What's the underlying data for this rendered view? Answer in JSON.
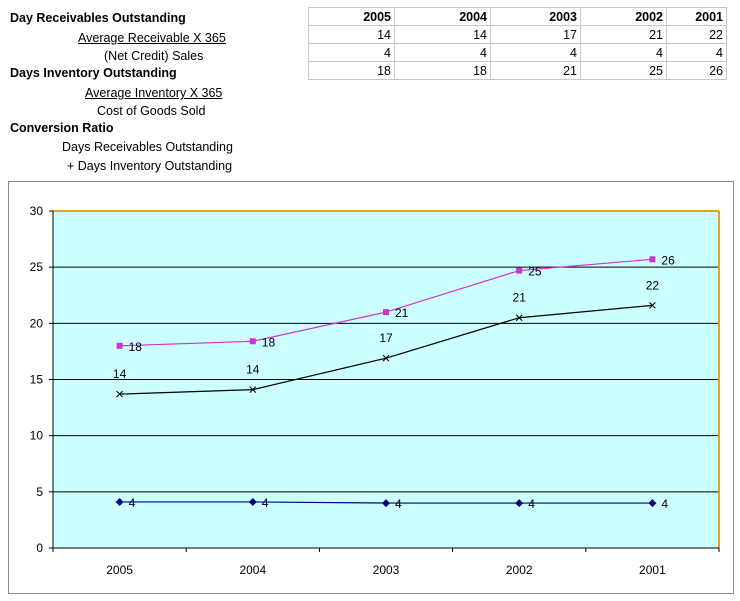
{
  "definitions": {
    "dro_title": "Day Receivables Outstanding",
    "dro_numerator": "Average Receivable X 365",
    "dro_denominator": "(Net Credit) Sales",
    "dio_title": "Days Inventory Outstanding",
    "dio_numerator": "Average Inventory X 365",
    "dio_denominator": "Cost of Goods Sold",
    "cr_title": "Conversion Ratio",
    "cr_line1": "Days Receivables Outstanding",
    "cr_line2": "+ Days Inventory Outstanding"
  },
  "table": {
    "headers": [
      "2005",
      "2004",
      "2003",
      "2002",
      "2001"
    ],
    "rows": [
      [
        "14",
        "14",
        "17",
        "21",
        "22"
      ],
      [
        "4",
        "4",
        "4",
        "4",
        "4"
      ],
      [
        "18",
        "18",
        "21",
        "25",
        "26"
      ]
    ]
  },
  "chart_data": {
    "type": "line",
    "categories": [
      "2005",
      "2004",
      "2003",
      "2002",
      "2001"
    ],
    "ylim": [
      0,
      30
    ],
    "yticks": [
      0,
      5,
      10,
      15,
      20,
      25,
      30
    ],
    "series": [
      {
        "name": "Conversion Ratio",
        "values": [
          18,
          18.4,
          21,
          24.7,
          25.7
        ],
        "labels": [
          "18",
          "18",
          "21",
          "25",
          "26"
        ],
        "color": "#cc33cc",
        "marker": "square"
      },
      {
        "name": "Day Receivables Outstanding",
        "values": [
          13.7,
          14.1,
          16.9,
          20.5,
          21.6
        ],
        "labels": [
          "14",
          "14",
          "17",
          "21",
          "22"
        ],
        "color": "#000000",
        "marker": "x"
      },
      {
        "name": "Days Inventory Outstanding",
        "values": [
          4.1,
          4.1,
          4,
          4,
          4
        ],
        "labels": [
          "4",
          "4",
          "4",
          "4",
          "4"
        ],
        "color": "#000080",
        "marker": "diamond"
      }
    ],
    "plot_background": "#ccffff",
    "plot_border": "#e0a020",
    "grid": true
  }
}
